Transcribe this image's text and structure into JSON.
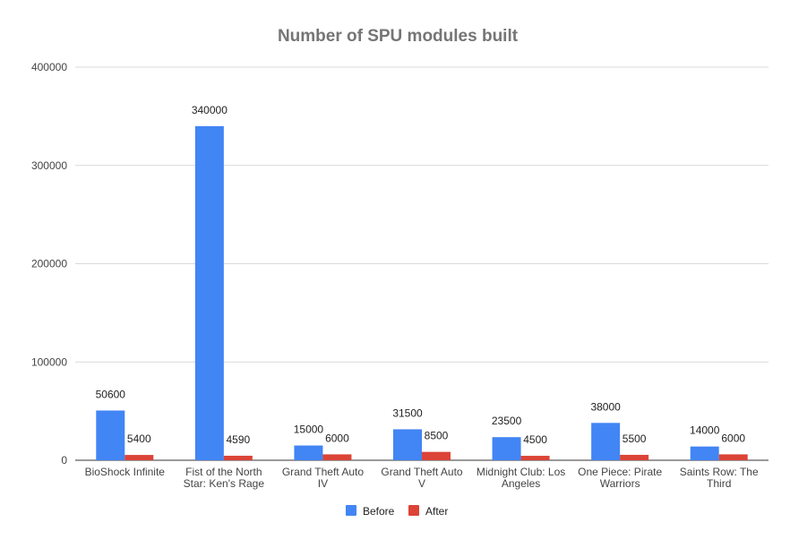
{
  "chart_data": {
    "type": "bar",
    "title": "Number of SPU modules built",
    "xlabel": "",
    "ylabel": "",
    "ylim": [
      0,
      400000
    ],
    "yticks": [
      0,
      100000,
      200000,
      300000,
      400000
    ],
    "ytick_labels": [
      "0",
      "100000",
      "200000",
      "300000",
      "400000"
    ],
    "grid": true,
    "legend_position": "bottom",
    "categories": [
      [
        "BioShock Infinite"
      ],
      [
        "Fist of the North",
        "Star: Ken's Rage"
      ],
      [
        "Grand Theft Auto",
        "IV"
      ],
      [
        "Grand Theft Auto",
        "V"
      ],
      [
        "Midnight Club: Los",
        "Angeles"
      ],
      [
        "One Piece: Pirate",
        "Warriors"
      ],
      [
        "Saints Row: The",
        "Third"
      ]
    ],
    "series": [
      {
        "name": "Before",
        "color": "#4285f4",
        "values": [
          50600,
          340000,
          15000,
          31500,
          23500,
          38000,
          14000
        ]
      },
      {
        "name": "After",
        "color": "#db4437",
        "values": [
          5400,
          4590,
          6000,
          8500,
          4500,
          5500,
          6000
        ]
      }
    ]
  }
}
